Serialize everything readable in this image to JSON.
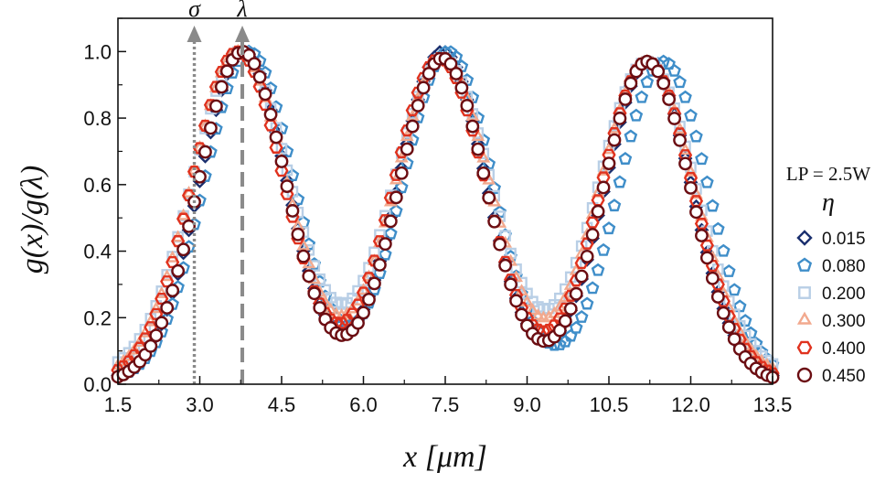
{
  "chart_data": {
    "type": "scatter",
    "xlabel": "x [μm]",
    "ylabel": "g(x)/g(λ)",
    "xlim": [
      1.5,
      13.5
    ],
    "ylim": [
      0.0,
      1.1
    ],
    "xticks": [
      "1.5",
      "3.0",
      "4.5",
      "6.0",
      "7.5",
      "9.0",
      "10.5",
      "12.0",
      "13.5"
    ],
    "yticks": [
      "0.0",
      "0.2",
      "0.4",
      "0.6",
      "0.8",
      "1.0"
    ],
    "markers": [
      {
        "label": "σ",
        "x": 2.9,
        "style": "dotted"
      },
      {
        "label": "λ",
        "x": 3.78,
        "style": "dashed"
      }
    ],
    "legend": {
      "title": "LP = 2.5W",
      "symbol": "η",
      "placement": "right"
    },
    "series": [
      {
        "name": "0.015",
        "marker": "diamond",
        "color": "#1a2f6e",
        "peaks": [
          3.8,
          7.45,
          11.22
        ],
        "peak_heights": [
          1.0,
          1.0,
          0.97
        ],
        "width": 0.8,
        "baseline": 0.01
      },
      {
        "name": "0.080",
        "marker": "pentagon",
        "color": "#3f8ec9",
        "peaks": [
          3.9,
          7.55,
          11.5
        ],
        "peak_heights": [
          1.0,
          1.0,
          0.97
        ],
        "width": 0.82,
        "baseline": 0.01
      },
      {
        "name": "0.200",
        "marker": "square",
        "color": "#b9cfe6",
        "peaks": [
          3.75,
          7.45,
          11.2
        ],
        "peak_heights": [
          1.0,
          0.98,
          0.97
        ],
        "width": 0.88,
        "baseline": 0.03
      },
      {
        "name": "0.300",
        "marker": "triangle",
        "color": "#f2a98e",
        "peaks": [
          3.72,
          7.45,
          11.2
        ],
        "peak_heights": [
          1.0,
          0.98,
          0.97
        ],
        "width": 0.86,
        "baseline": 0.02
      },
      {
        "name": "0.400",
        "marker": "hexagon",
        "color": "#e0321e",
        "peaks": [
          3.7,
          7.4,
          11.2
        ],
        "peak_heights": [
          1.0,
          0.98,
          0.97
        ],
        "width": 0.84,
        "baseline": 0.01
      },
      {
        "name": "0.450",
        "marker": "circle",
        "color": "#6b0d12",
        "peaks": [
          3.78,
          7.45,
          11.2
        ],
        "peak_heights": [
          1.0,
          0.98,
          0.97
        ],
        "width": 0.8,
        "baseline": 0.005
      }
    ]
  }
}
